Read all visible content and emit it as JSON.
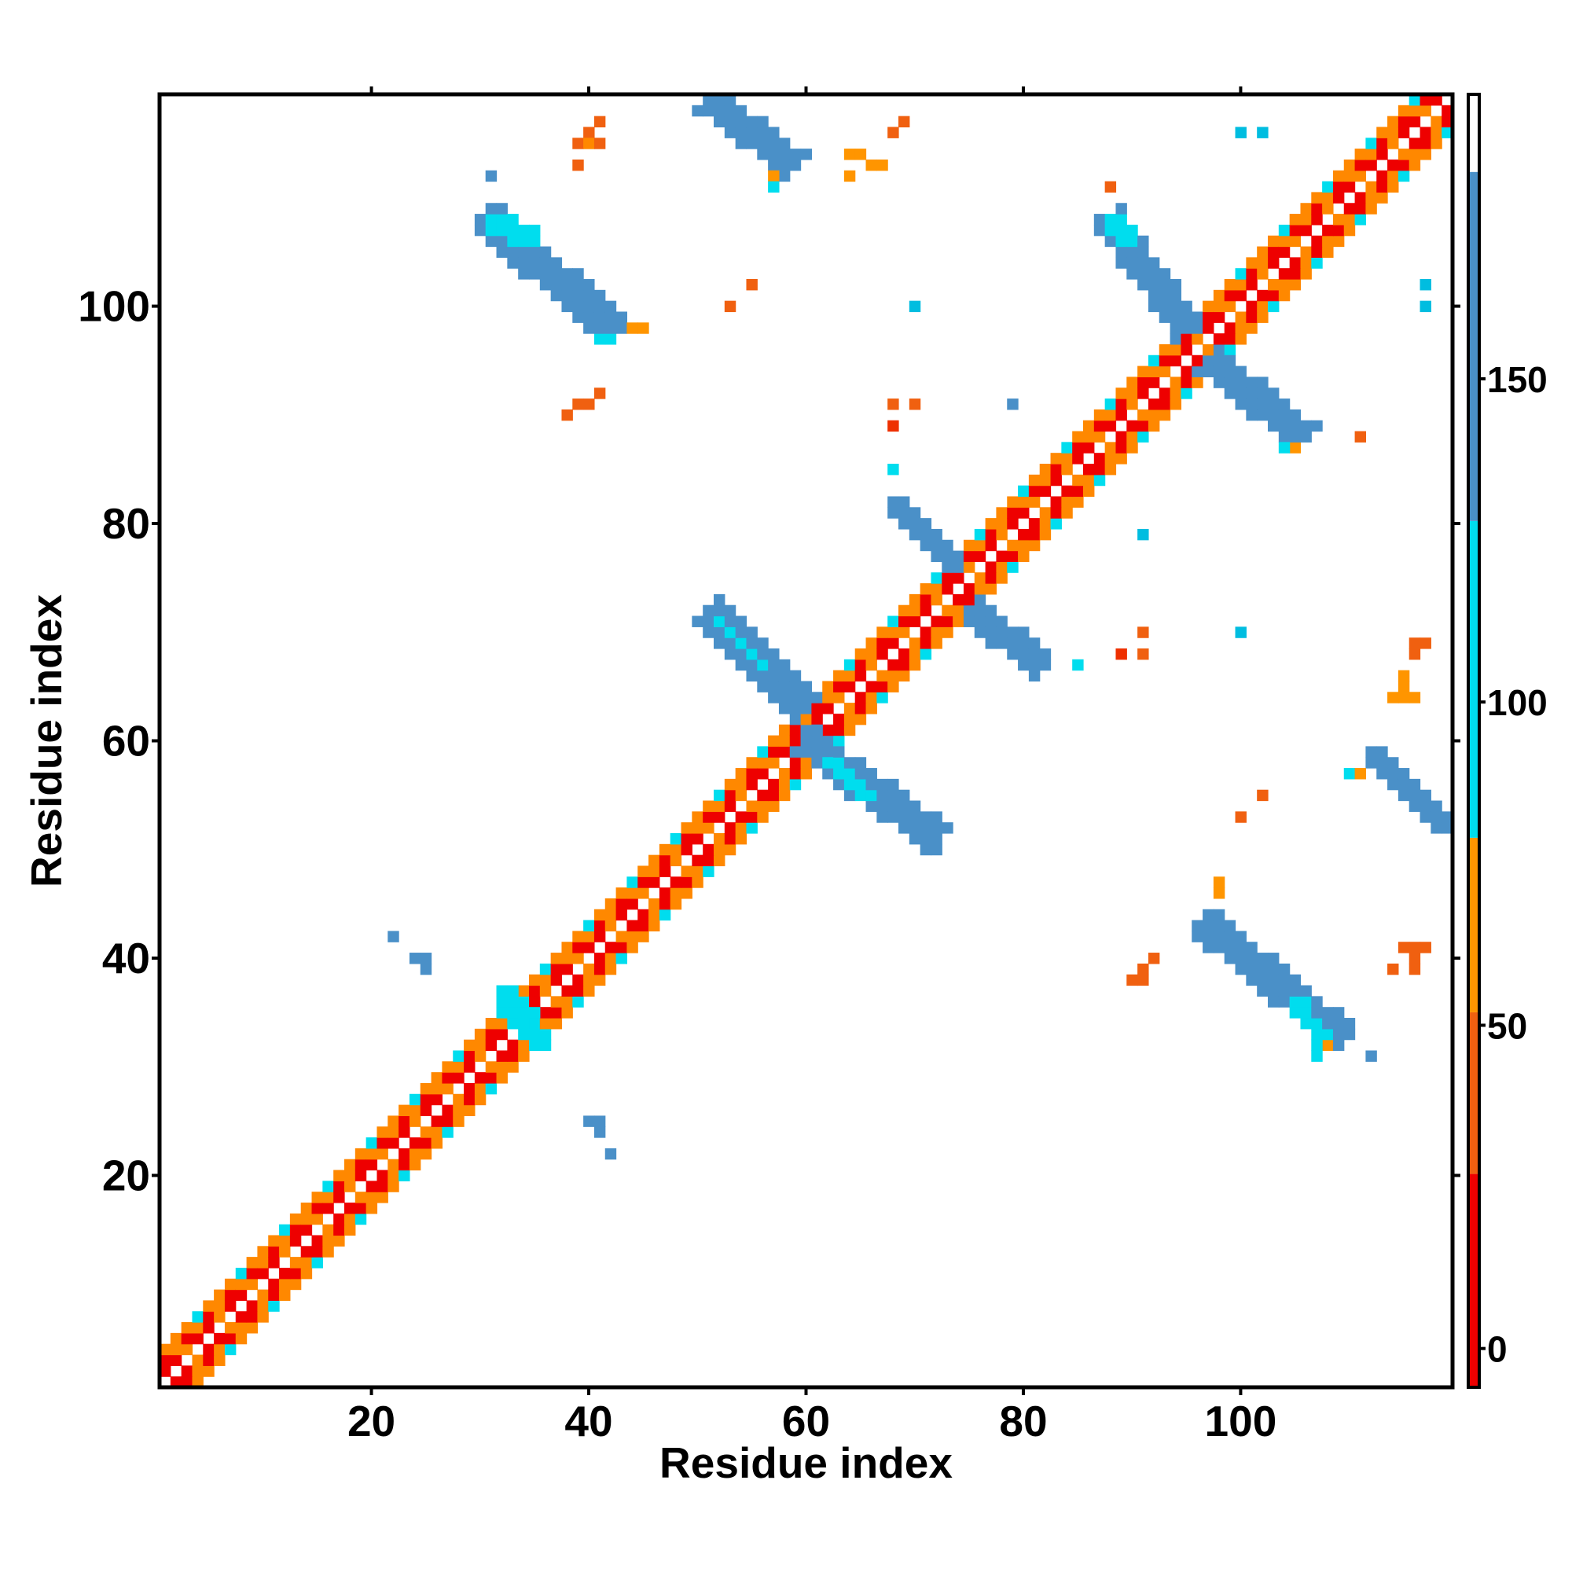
{
  "chart_data": {
    "type": "heatmap",
    "title": "",
    "xlabel": "Residue index",
    "ylabel": "Residue index",
    "xlim": [
      1,
      119
    ],
    "ylim": [
      1,
      119
    ],
    "x_ticks": [
      20,
      40,
      60,
      80,
      100
    ],
    "y_ticks": [
      20,
      40,
      60,
      80,
      100
    ],
    "colorbar": {
      "ticks": [
        0,
        50,
        100,
        150
      ],
      "range": [
        -6,
        194
      ],
      "bands": [
        {
          "from": -6,
          "to": 27,
          "color": "#ee0000"
        },
        {
          "from": 27,
          "to": 52,
          "color": "#f06010"
        },
        {
          "from": 52,
          "to": 79,
          "color": "#ff9500"
        },
        {
          "from": 79,
          "to": 128,
          "color": "#00ddee"
        },
        {
          "from": 128,
          "to": 182,
          "color": "#4a90c8"
        },
        {
          "from": 182,
          "to": 194,
          "color": "#ffffff"
        }
      ]
    },
    "diagonal": {
      "from": 1,
      "to": 119,
      "spread": 3,
      "near_color": "#ee0000",
      "mid_color": "#ff8800",
      "far_color": "#00ddee"
    },
    "contact_bands": [
      {
        "x0": 51,
        "y0": 72,
        "x1": 60,
        "y1": 63,
        "halfwidth": 1.6,
        "color": "#4a90c8"
      },
      {
        "x0": 52,
        "y0": 71,
        "x1": 56,
        "y1": 67,
        "halfwidth": 0.7,
        "color": "#00ddee"
      },
      {
        "x0": 60,
        "y0": 60,
        "x1": 72,
        "y1": 51,
        "halfwidth": 1.6,
        "color": "#4a90c8"
      },
      {
        "x0": 62,
        "y0": 58,
        "x1": 66,
        "y1": 55,
        "halfwidth": 0.7,
        "color": "#00ddee"
      },
      {
        "x0": 68,
        "y0": 82,
        "x1": 74,
        "y1": 76,
        "halfwidth": 1.4,
        "color": "#4a90c8"
      },
      {
        "x0": 75,
        "y0": 72,
        "x1": 82,
        "y1": 67,
        "halfwidth": 1.4,
        "color": "#4a90c8"
      },
      {
        "x0": 88,
        "y0": 108,
        "x1": 95,
        "y1": 98,
        "halfwidth": 1.5,
        "color": "#4a90c8"
      },
      {
        "x0": 88,
        "y0": 108,
        "x1": 90,
        "y1": 106,
        "halfwidth": 0.8,
        "color": "#00ddee"
      },
      {
        "x0": 97,
        "y0": 95,
        "x1": 106,
        "y1": 88,
        "halfwidth": 1.5,
        "color": "#4a90c8"
      },
      {
        "x0": 31,
        "y0": 108,
        "x1": 42,
        "y1": 98,
        "halfwidth": 1.7,
        "color": "#4a90c8"
      },
      {
        "x0": 31,
        "y0": 108,
        "x1": 35,
        "y1": 106,
        "halfwidth": 0.9,
        "color": "#00ddee"
      },
      {
        "x0": 51,
        "y0": 119,
        "x1": 59,
        "y1": 113,
        "halfwidth": 1.5,
        "color": "#4a90c8"
      },
      {
        "x0": 97,
        "y0": 43,
        "x1": 109,
        "y1": 33,
        "halfwidth": 1.6,
        "color": "#4a90c8"
      },
      {
        "x0": 105,
        "y0": 36,
        "x1": 108,
        "y1": 32,
        "halfwidth": 0.8,
        "color": "#00ddee"
      },
      {
        "x0": 112,
        "y0": 59,
        "x1": 119,
        "y1": 52,
        "halfwidth": 1.4,
        "color": "#4a90c8"
      },
      {
        "x0": 32,
        "y0": 37,
        "x1": 36,
        "y1": 32,
        "halfwidth": 1.1,
        "color": "#00ddee"
      }
    ],
    "isolated_points": [
      {
        "x": 40,
        "y": 116,
        "color": "#f06010"
      },
      {
        "x": 41,
        "y": 117,
        "color": "#f06010"
      },
      {
        "x": 39,
        "y": 115,
        "color": "#f06010"
      },
      {
        "x": 40,
        "y": 115,
        "color": "#ff8800"
      },
      {
        "x": 39,
        "y": 113,
        "color": "#f06010"
      },
      {
        "x": 41,
        "y": 115,
        "color": "#f06010"
      },
      {
        "x": 64,
        "y": 114,
        "color": "#ff9500"
      },
      {
        "x": 65,
        "y": 114,
        "color": "#ff9500"
      },
      {
        "x": 66,
        "y": 113,
        "color": "#ff9500"
      },
      {
        "x": 64,
        "y": 112,
        "color": "#ff9500"
      },
      {
        "x": 67,
        "y": 113,
        "color": "#ff9500"
      },
      {
        "x": 68,
        "y": 116,
        "color": "#f06010"
      },
      {
        "x": 69,
        "y": 117,
        "color": "#f06010"
      },
      {
        "x": 57,
        "y": 112,
        "color": "#ff9500"
      },
      {
        "x": 57,
        "y": 111,
        "color": "#00ddee"
      },
      {
        "x": 31,
        "y": 112,
        "color": "#4a90c8"
      },
      {
        "x": 100,
        "y": 116,
        "color": "#00bde0"
      },
      {
        "x": 102,
        "y": 116,
        "color": "#00bde0"
      },
      {
        "x": 88,
        "y": 111,
        "color": "#f06010"
      },
      {
        "x": 55,
        "y": 102,
        "color": "#f06010"
      },
      {
        "x": 53,
        "y": 100,
        "color": "#f06010"
      },
      {
        "x": 70,
        "y": 100,
        "color": "#00bde0"
      },
      {
        "x": 117,
        "y": 102,
        "color": "#00bde0"
      },
      {
        "x": 117,
        "y": 100,
        "color": "#00bde0"
      },
      {
        "x": 44,
        "y": 98,
        "color": "#ff9500"
      },
      {
        "x": 45,
        "y": 98,
        "color": "#ff9500"
      },
      {
        "x": 42,
        "y": 97,
        "color": "#00ddee"
      },
      {
        "x": 41,
        "y": 97,
        "color": "#00ddee"
      },
      {
        "x": 39,
        "y": 91,
        "color": "#f06010"
      },
      {
        "x": 40,
        "y": 91,
        "color": "#f06010"
      },
      {
        "x": 41,
        "y": 92,
        "color": "#f06010"
      },
      {
        "x": 38,
        "y": 90,
        "color": "#f06010"
      },
      {
        "x": 68,
        "y": 91,
        "color": "#f06010"
      },
      {
        "x": 70,
        "y": 91,
        "color": "#f06010"
      },
      {
        "x": 68,
        "y": 89,
        "color": "#ee3000"
      },
      {
        "x": 79,
        "y": 91,
        "color": "#4a90c8"
      },
      {
        "x": 68,
        "y": 85,
        "color": "#00ddee"
      },
      {
        "x": 111,
        "y": 88,
        "color": "#f06010"
      },
      {
        "x": 105,
        "y": 87,
        "color": "#ff9500"
      },
      {
        "x": 104,
        "y": 87,
        "color": "#00ddee"
      },
      {
        "x": 91,
        "y": 79,
        "color": "#00bde0"
      },
      {
        "x": 85,
        "y": 67,
        "color": "#00ddee"
      },
      {
        "x": 89,
        "y": 68,
        "color": "#ee3000"
      },
      {
        "x": 91,
        "y": 68,
        "color": "#f06010"
      },
      {
        "x": 91,
        "y": 70,
        "color": "#f06010"
      },
      {
        "x": 100,
        "y": 70,
        "color": "#00bde0"
      },
      {
        "x": 116,
        "y": 69,
        "color": "#f06010"
      },
      {
        "x": 117,
        "y": 69,
        "color": "#f06010"
      },
      {
        "x": 116,
        "y": 68,
        "color": "#f06010"
      },
      {
        "x": 115,
        "y": 66,
        "color": "#ff9500"
      },
      {
        "x": 115,
        "y": 65,
        "color": "#ff9500"
      },
      {
        "x": 116,
        "y": 64,
        "color": "#ff9500"
      },
      {
        "x": 114,
        "y": 64,
        "color": "#ff9500"
      },
      {
        "x": 115,
        "y": 64,
        "color": "#ff9500"
      },
      {
        "x": 110,
        "y": 57,
        "color": "#00ddee"
      },
      {
        "x": 111,
        "y": 57,
        "color": "#ff9500"
      },
      {
        "x": 102,
        "y": 55,
        "color": "#f06010"
      },
      {
        "x": 100,
        "y": 53,
        "color": "#f06010"
      },
      {
        "x": 98,
        "y": 46,
        "color": "#ff9500"
      },
      {
        "x": 98,
        "y": 47,
        "color": "#ff9500"
      },
      {
        "x": 92,
        "y": 40,
        "color": "#f06010"
      },
      {
        "x": 91,
        "y": 39,
        "color": "#f06010"
      },
      {
        "x": 90,
        "y": 38,
        "color": "#f06010"
      },
      {
        "x": 91,
        "y": 38,
        "color": "#f06010"
      },
      {
        "x": 115,
        "y": 41,
        "color": "#f06010"
      },
      {
        "x": 116,
        "y": 41,
        "color": "#f06010"
      },
      {
        "x": 117,
        "y": 41,
        "color": "#f06010"
      },
      {
        "x": 116,
        "y": 40,
        "color": "#f06010"
      },
      {
        "x": 116,
        "y": 39,
        "color": "#f06010"
      },
      {
        "x": 114,
        "y": 39,
        "color": "#f06010"
      },
      {
        "x": 112,
        "y": 31,
        "color": "#4a90c8"
      },
      {
        "x": 107,
        "y": 31,
        "color": "#00ddee"
      },
      {
        "x": 108,
        "y": 32,
        "color": "#ff9500"
      },
      {
        "x": 22,
        "y": 42,
        "color": "#4a90c8"
      },
      {
        "x": 24,
        "y": 40,
        "color": "#4a90c8"
      },
      {
        "x": 25,
        "y": 40,
        "color": "#4a90c8"
      },
      {
        "x": 25,
        "y": 39,
        "color": "#4a90c8"
      },
      {
        "x": 40,
        "y": 25,
        "color": "#4a90c8"
      },
      {
        "x": 41,
        "y": 25,
        "color": "#4a90c8"
      },
      {
        "x": 41,
        "y": 24,
        "color": "#4a90c8"
      },
      {
        "x": 42,
        "y": 22,
        "color": "#4a90c8"
      }
    ]
  }
}
